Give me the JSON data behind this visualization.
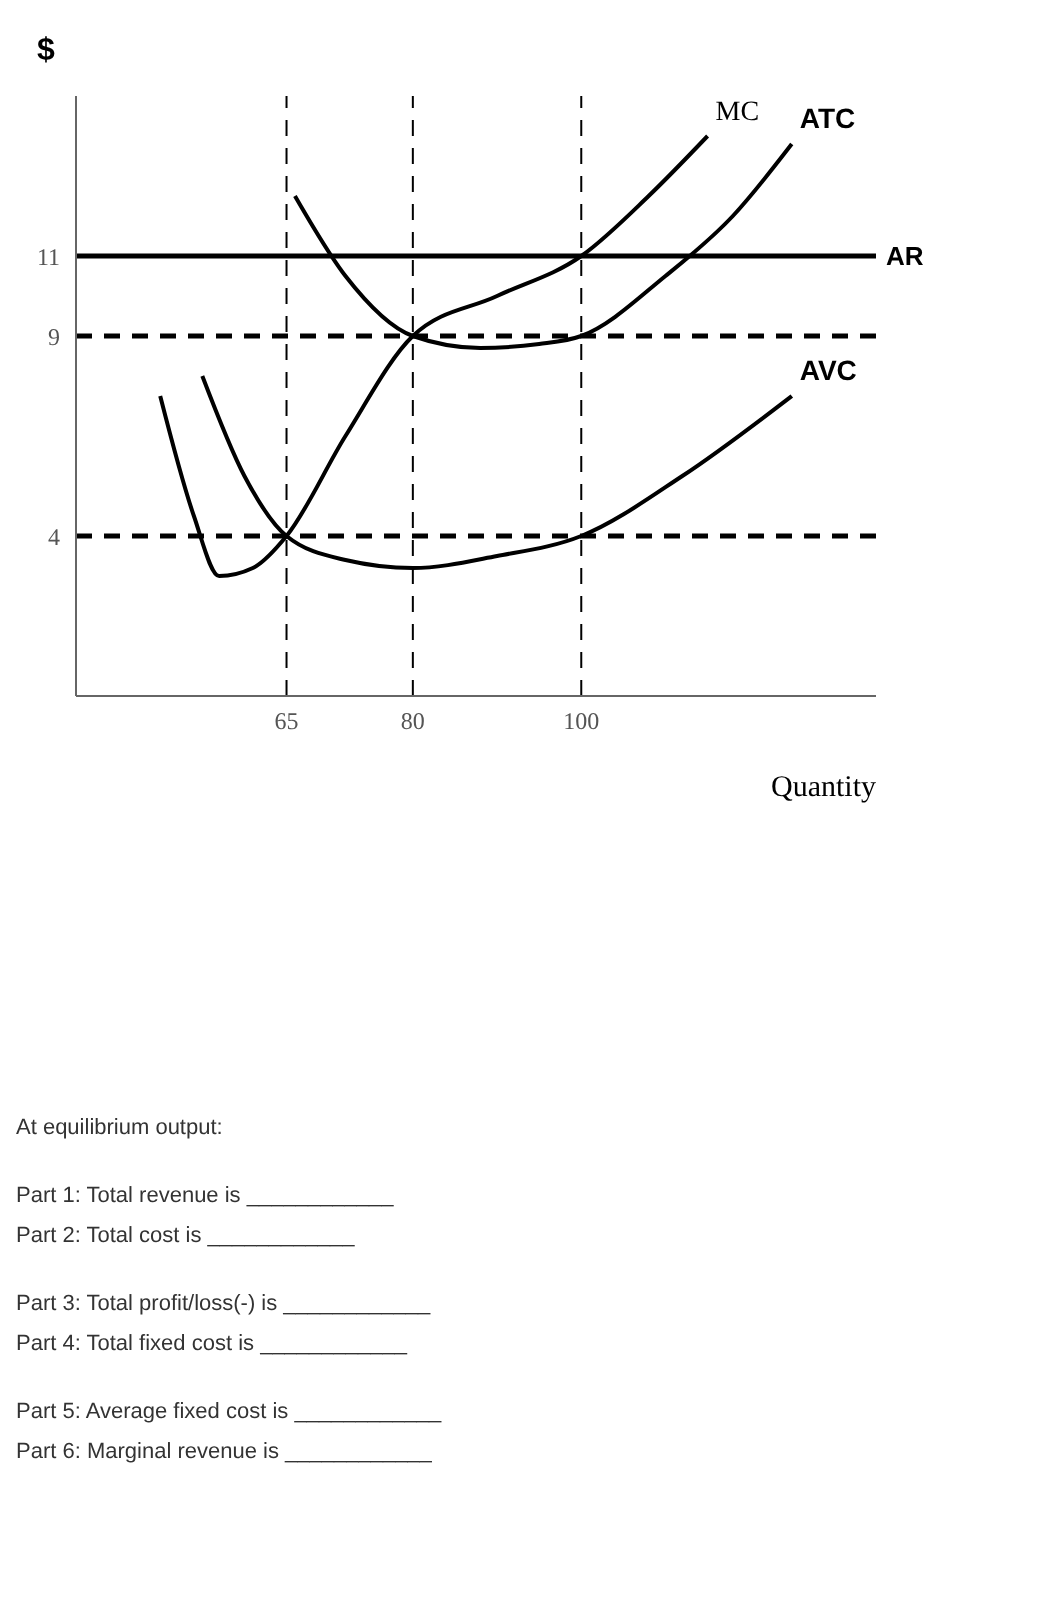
{
  "chart_data": {
    "type": "line",
    "xlabel": "Quantity",
    "ylabel": "$",
    "xlim": [
      40,
      135
    ],
    "ylim": [
      0,
      15
    ],
    "xticks": [
      65,
      80,
      100
    ],
    "yticks": [
      4,
      9,
      11
    ],
    "marker": "none",
    "line_style": "solid",
    "series": [
      {
        "name": "MC",
        "color": "#000000",
        "x": [
          50,
          54,
          57,
          61,
          65,
          72,
          80,
          90,
          100,
          108,
          115
        ],
        "values": [
          7.5,
          4.5,
          3,
          3.2,
          4,
          6.5,
          9,
          10,
          11,
          12.5,
          14
        ]
      },
      {
        "name": "ATC",
        "color": "#000000",
        "x": [
          66,
          72,
          80,
          88,
          95,
          100,
          110,
          118,
          125
        ],
        "values": [
          12.5,
          10.5,
          9,
          8.7,
          8.8,
          9,
          10.5,
          12,
          13.8
        ]
      },
      {
        "name": "AVC",
        "color": "#000000",
        "x": [
          55,
          60,
          65,
          72,
          80,
          90,
          100,
          112,
          125
        ],
        "values": [
          8,
          5.5,
          4,
          3.4,
          3.2,
          3.5,
          4,
          5.5,
          7.5
        ]
      }
    ],
    "ref_lines": [
      {
        "axis": "y",
        "value": 11,
        "label": "AR",
        "line_style": "solid",
        "color": "#000000"
      },
      {
        "axis": "y",
        "value": 9,
        "line_style": "dashed",
        "color": "#000000"
      },
      {
        "axis": "y",
        "value": 4,
        "line_style": "dashed",
        "color": "#000000"
      },
      {
        "axis": "x",
        "value": 65,
        "line_style": "dashed",
        "color": "#000000"
      },
      {
        "axis": "x",
        "value": 80,
        "line_style": "dashed",
        "color": "#000000"
      },
      {
        "axis": "x",
        "value": 100,
        "line_style": "dashed",
        "color": "#000000"
      }
    ],
    "annotations": [
      "At equilibrium output:",
      "Part 1: Total revenue is ____________",
      "Part 2: Total cost is ____________",
      "Part 3: Total profit/loss(-) is ____________",
      "Part 4: Total fixed cost is ____________",
      "Part 5: Average fixed cost is ____________",
      "Part 6: Marginal revenue is ____________"
    ]
  }
}
